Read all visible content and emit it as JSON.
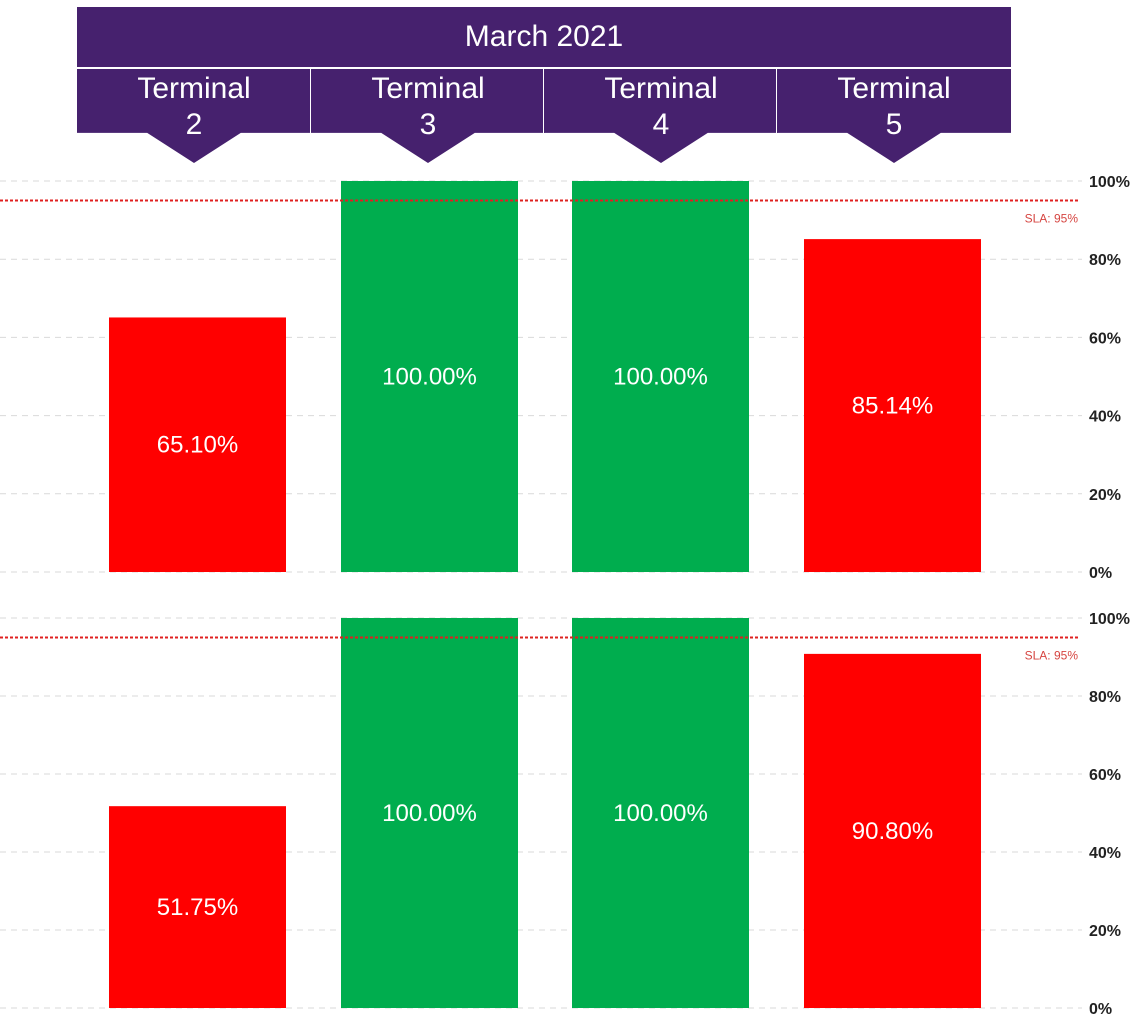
{
  "header": {
    "month": "March 2021",
    "terminals": [
      {
        "line1": "Terminal",
        "line2": "2"
      },
      {
        "line1": "Terminal",
        "line2": "3"
      },
      {
        "line1": "Terminal",
        "line2": "4"
      },
      {
        "line1": "Terminal",
        "line2": "5"
      }
    ]
  },
  "colors": {
    "header": "#46216e",
    "below_sla": "#ff0000",
    "meets_sla": "#00ad4e",
    "sla_line": "#e02020",
    "grid": "#d9d9d9"
  },
  "chart_data": [
    {
      "type": "bar",
      "categories": [
        "Terminal 2",
        "Terminal 3",
        "Terminal 4",
        "Terminal 5"
      ],
      "values": [
        65.1,
        100.0,
        100.0,
        85.14
      ],
      "value_labels": [
        "65.10%",
        "100.00%",
        "100.00%",
        "85.14%"
      ],
      "ylim": [
        0,
        100
      ],
      "yticks": [
        0,
        20,
        40,
        60,
        80,
        100
      ],
      "ytick_labels": [
        "0%",
        "20%",
        "40%",
        "60%",
        "80%",
        "100%"
      ],
      "grid": true,
      "reference_line": {
        "value": 95,
        "label": "SLA: 95%"
      }
    },
    {
      "type": "bar",
      "categories": [
        "Terminal 2",
        "Terminal 3",
        "Terminal 4",
        "Terminal 5"
      ],
      "values": [
        51.75,
        100.0,
        100.0,
        90.8
      ],
      "value_labels": [
        "51.75%",
        "100.00%",
        "100.00%",
        "90.80%"
      ],
      "ylim": [
        0,
        100
      ],
      "yticks": [
        0,
        20,
        40,
        60,
        80,
        100
      ],
      "ytick_labels": [
        "0%",
        "20%",
        "40%",
        "60%",
        "80%",
        "100%"
      ],
      "grid": true,
      "reference_line": {
        "value": 95,
        "label": "SLA: 95%"
      }
    }
  ]
}
